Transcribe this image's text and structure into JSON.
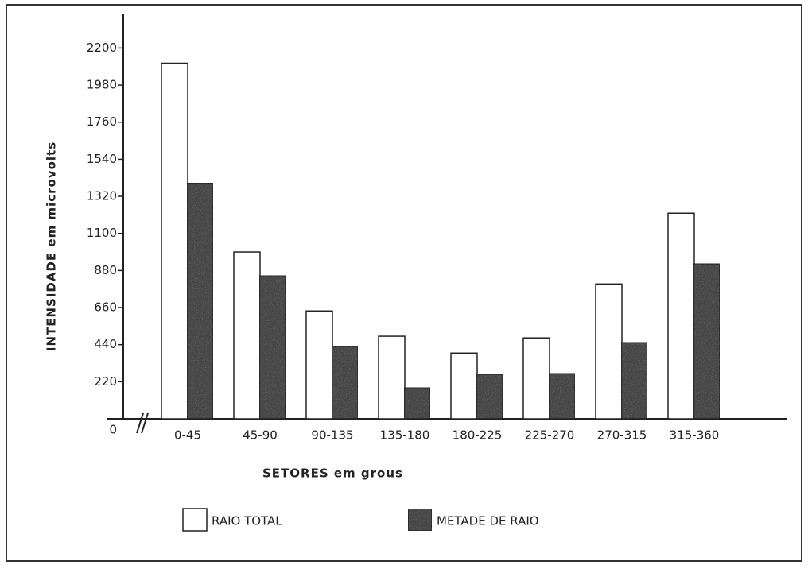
{
  "chart_data": {
    "type": "bar",
    "x_label": "SETORES em grous",
    "y_label": "INTENSIDADE em microvolts",
    "categories": [
      "0-45",
      "45-90",
      "90-135",
      "135-180",
      "180-225",
      "225-270",
      "270-315",
      "315-360"
    ],
    "series": [
      {
        "name": "RAIO TOTAL",
        "color": "#ffffff",
        "values": [
          2110,
          990,
          640,
          490,
          390,
          480,
          800,
          1220
        ]
      },
      {
        "name": "METADE DE RAIO",
        "color": "#4a4a4a",
        "values": [
          1400,
          850,
          430,
          185,
          265,
          270,
          455,
          920
        ]
      }
    ],
    "ylim": [
      0,
      2400
    ],
    "yticks": [
      0,
      220,
      440,
      660,
      880,
      1100,
      1320,
      1540,
      1760,
      1980,
      2200
    ],
    "legend": "bottom"
  }
}
